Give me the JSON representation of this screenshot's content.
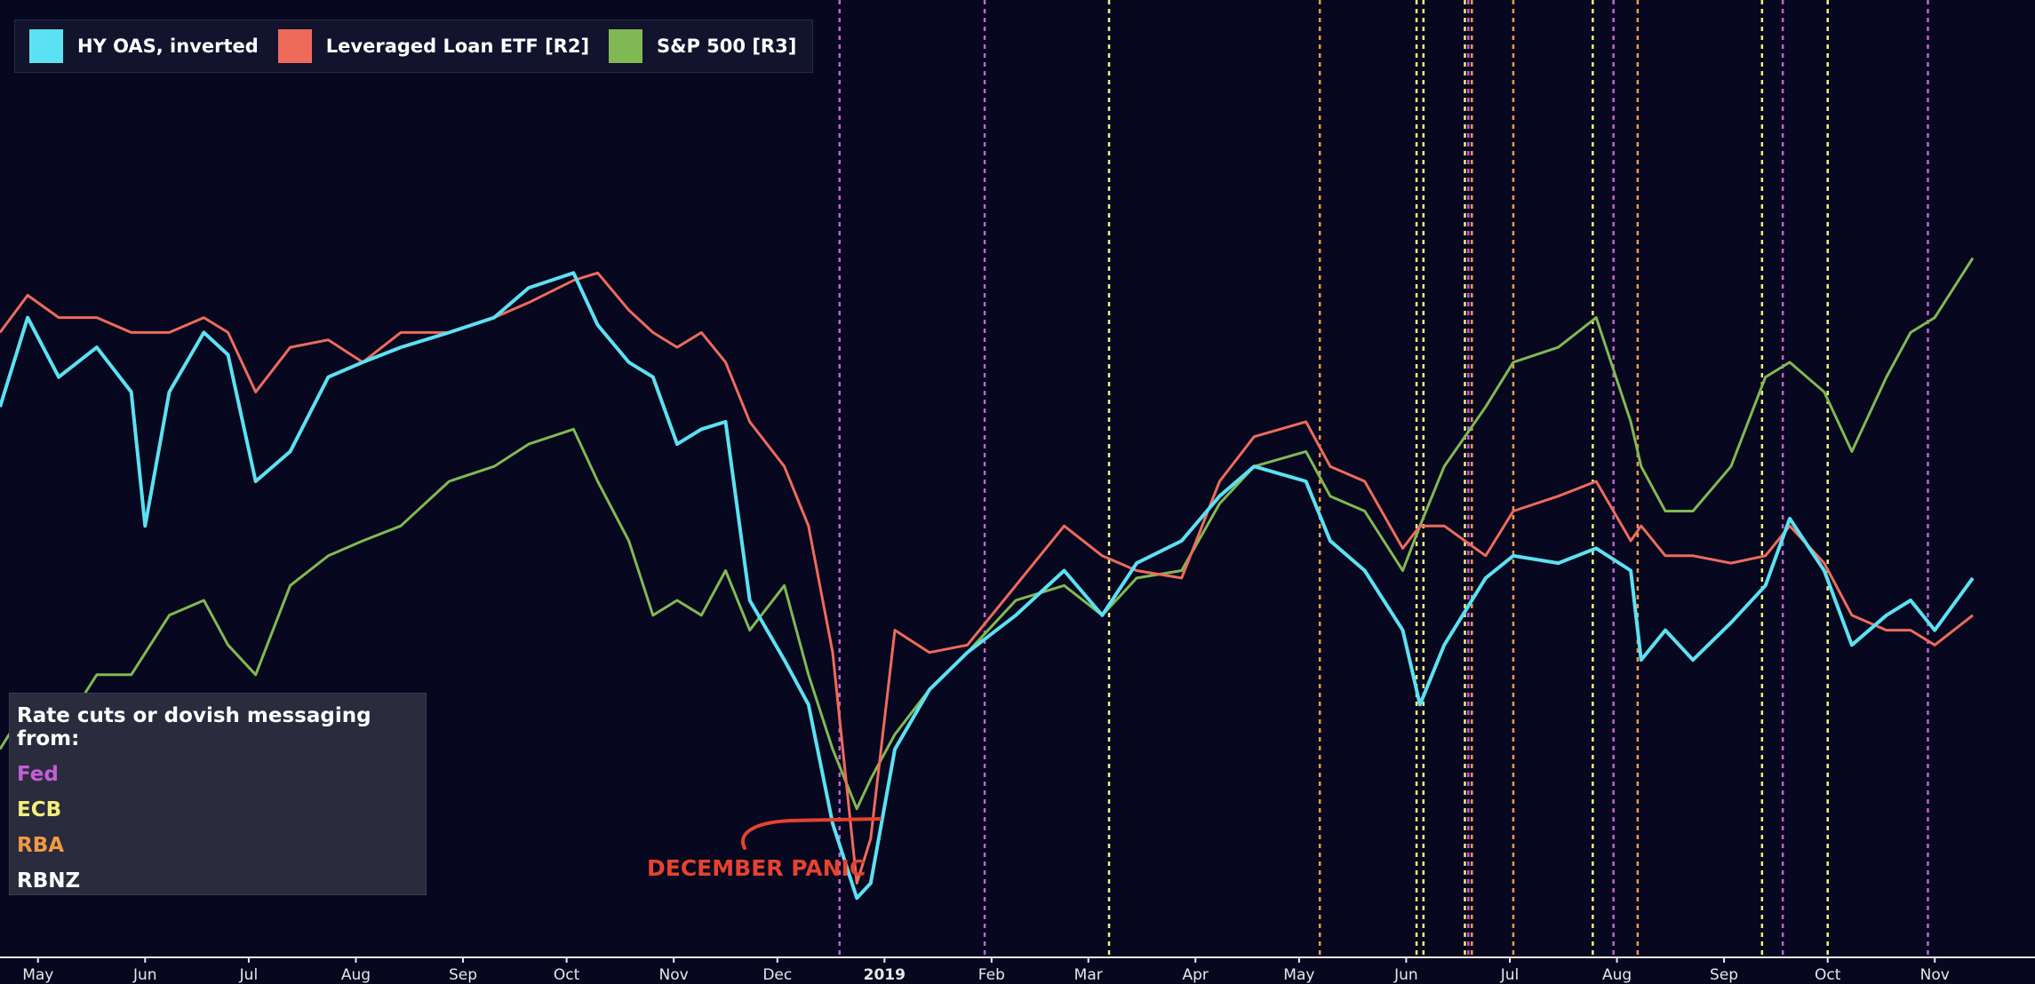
{
  "legend": {
    "items": [
      {
        "label": "HY OAS, inverted",
        "color": "#5ce1f2"
      },
      {
        "label": "Leveraged Loan ETF [R2]",
        "color": "#ee6b5c"
      },
      {
        "label": "S&P 500 [R3]",
        "color": "#80b953"
      }
    ]
  },
  "central_banks": {
    "title": "Rate cuts or dovish messaging from:",
    "items": [
      {
        "label": "Fed",
        "color": "#c55fd6"
      },
      {
        "label": "ECB",
        "color": "#f3f07a"
      },
      {
        "label": "RBA",
        "color": "#f09a45"
      },
      {
        "label": "RBNZ",
        "color": "#ffffff"
      }
    ]
  },
  "annotation": {
    "text": "DECEMBER PANIC",
    "color": "#e5432f"
  },
  "chart_data": {
    "type": "line",
    "x_ticks": [
      "May",
      "Jun",
      "Jul",
      "Aug",
      "Sep",
      "Oct",
      "Nov",
      "Dec",
      "2019",
      "Feb",
      "Mar",
      "Apr",
      "May",
      "Jun",
      "Jul",
      "Aug",
      "Sep",
      "Oct",
      "Nov"
    ],
    "x_axis": {
      "start": "2018-04-20",
      "end": "2019-11-30"
    },
    "series": [
      {
        "name": "HY OAS, inverted",
        "color": "#5ce1f2",
        "values": [
          [
            "2018-04-20",
            68
          ],
          [
            "2018-04-28",
            80
          ],
          [
            "2018-05-07",
            72
          ],
          [
            "2018-05-18",
            76
          ],
          [
            "2018-05-28",
            70
          ],
          [
            "2018-06-01",
            52
          ],
          [
            "2018-06-08",
            70
          ],
          [
            "2018-06-18",
            78
          ],
          [
            "2018-06-25",
            75
          ],
          [
            "2018-07-03",
            58
          ],
          [
            "2018-07-13",
            62
          ],
          [
            "2018-07-24",
            72
          ],
          [
            "2018-08-03",
            74
          ],
          [
            "2018-08-14",
            76
          ],
          [
            "2018-08-28",
            78
          ],
          [
            "2018-09-10",
            80
          ],
          [
            "2018-09-20",
            84
          ],
          [
            "2018-10-03",
            86
          ],
          [
            "2018-10-10",
            79
          ],
          [
            "2018-10-19",
            74
          ],
          [
            "2018-10-26",
            72
          ],
          [
            "2018-11-02",
            63
          ],
          [
            "2018-11-09",
            65
          ],
          [
            "2018-11-16",
            66
          ],
          [
            "2018-11-23",
            42
          ],
          [
            "2018-12-03",
            34
          ],
          [
            "2018-12-10",
            28
          ],
          [
            "2018-12-17",
            12
          ],
          [
            "2018-12-24",
            2
          ],
          [
            "2018-12-28",
            4
          ],
          [
            "2019-01-04",
            22
          ],
          [
            "2019-01-14",
            30
          ],
          [
            "2019-01-25",
            35
          ],
          [
            "2019-02-08",
            40
          ],
          [
            "2019-02-22",
            46
          ],
          [
            "2019-03-05",
            40
          ],
          [
            "2019-03-15",
            47
          ],
          [
            "2019-03-28",
            50
          ],
          [
            "2019-04-08",
            56
          ],
          [
            "2019-04-18",
            60
          ],
          [
            "2019-05-03",
            58
          ],
          [
            "2019-05-10",
            50
          ],
          [
            "2019-05-20",
            46
          ],
          [
            "2019-05-31",
            38
          ],
          [
            "2019-06-05",
            28
          ],
          [
            "2019-06-12",
            36
          ],
          [
            "2019-06-24",
            45
          ],
          [
            "2019-07-02",
            48
          ],
          [
            "2019-07-15",
            47
          ],
          [
            "2019-07-26",
            49
          ],
          [
            "2019-08-05",
            46
          ],
          [
            "2019-08-08",
            34
          ],
          [
            "2019-08-15",
            38
          ],
          [
            "2019-08-23",
            34
          ],
          [
            "2019-09-03",
            39
          ],
          [
            "2019-09-13",
            44
          ],
          [
            "2019-09-20",
            53
          ],
          [
            "2019-09-30",
            46
          ],
          [
            "2019-10-08",
            36
          ],
          [
            "2019-10-18",
            40
          ],
          [
            "2019-10-25",
            42
          ],
          [
            "2019-11-01",
            38
          ],
          [
            "2019-11-12",
            45
          ]
        ]
      },
      {
        "name": "Leveraged Loan ETF [R2]",
        "color": "#ee6b5c",
        "values": [
          [
            "2018-04-20",
            78
          ],
          [
            "2018-04-28",
            83
          ],
          [
            "2018-05-07",
            80
          ],
          [
            "2018-05-18",
            80
          ],
          [
            "2018-05-28",
            78
          ],
          [
            "2018-06-08",
            78
          ],
          [
            "2018-06-18",
            80
          ],
          [
            "2018-06-25",
            78
          ],
          [
            "2018-07-03",
            70
          ],
          [
            "2018-07-13",
            76
          ],
          [
            "2018-07-24",
            77
          ],
          [
            "2018-08-03",
            74
          ],
          [
            "2018-08-14",
            78
          ],
          [
            "2018-08-28",
            78
          ],
          [
            "2018-09-10",
            80
          ],
          [
            "2018-09-20",
            82
          ],
          [
            "2018-10-03",
            85
          ],
          [
            "2018-10-10",
            86
          ],
          [
            "2018-10-19",
            81
          ],
          [
            "2018-10-26",
            78
          ],
          [
            "2018-11-02",
            76
          ],
          [
            "2018-11-09",
            78
          ],
          [
            "2018-11-16",
            74
          ],
          [
            "2018-11-23",
            66
          ],
          [
            "2018-12-03",
            60
          ],
          [
            "2018-12-10",
            52
          ],
          [
            "2018-12-17",
            35
          ],
          [
            "2018-12-24",
            4
          ],
          [
            "2018-12-28",
            10
          ],
          [
            "2019-01-04",
            38
          ],
          [
            "2019-01-14",
            35
          ],
          [
            "2019-01-25",
            36
          ],
          [
            "2019-02-08",
            44
          ],
          [
            "2019-02-22",
            52
          ],
          [
            "2019-03-05",
            48
          ],
          [
            "2019-03-15",
            46
          ],
          [
            "2019-03-28",
            45
          ],
          [
            "2019-04-08",
            58
          ],
          [
            "2019-04-18",
            64
          ],
          [
            "2019-05-03",
            66
          ],
          [
            "2019-05-10",
            60
          ],
          [
            "2019-05-20",
            58
          ],
          [
            "2019-05-31",
            49
          ],
          [
            "2019-06-05",
            52
          ],
          [
            "2019-06-12",
            52
          ],
          [
            "2019-06-24",
            48
          ],
          [
            "2019-07-02",
            54
          ],
          [
            "2019-07-15",
            56
          ],
          [
            "2019-07-26",
            58
          ],
          [
            "2019-08-05",
            50
          ],
          [
            "2019-08-08",
            52
          ],
          [
            "2019-08-15",
            48
          ],
          [
            "2019-08-23",
            48
          ],
          [
            "2019-09-03",
            47
          ],
          [
            "2019-09-13",
            48
          ],
          [
            "2019-09-20",
            52
          ],
          [
            "2019-09-30",
            47
          ],
          [
            "2019-10-08",
            40
          ],
          [
            "2019-10-18",
            38
          ],
          [
            "2019-10-25",
            38
          ],
          [
            "2019-11-01",
            36
          ],
          [
            "2019-11-12",
            40
          ]
        ]
      },
      {
        "name": "S&P 500 [R3]",
        "color": "#80b953",
        "values": [
          [
            "2018-04-20",
            22
          ],
          [
            "2018-04-28",
            28
          ],
          [
            "2018-05-07",
            24
          ],
          [
            "2018-05-18",
            32
          ],
          [
            "2018-05-28",
            32
          ],
          [
            "2018-06-08",
            40
          ],
          [
            "2018-06-18",
            42
          ],
          [
            "2018-06-25",
            36
          ],
          [
            "2018-07-03",
            32
          ],
          [
            "2018-07-13",
            44
          ],
          [
            "2018-07-24",
            48
          ],
          [
            "2018-08-03",
            50
          ],
          [
            "2018-08-14",
            52
          ],
          [
            "2018-08-28",
            58
          ],
          [
            "2018-09-10",
            60
          ],
          [
            "2018-09-20",
            63
          ],
          [
            "2018-10-03",
            65
          ],
          [
            "2018-10-10",
            58
          ],
          [
            "2018-10-19",
            50
          ],
          [
            "2018-10-26",
            40
          ],
          [
            "2018-11-02",
            42
          ],
          [
            "2018-11-09",
            40
          ],
          [
            "2018-11-16",
            46
          ],
          [
            "2018-11-23",
            38
          ],
          [
            "2018-12-03",
            44
          ],
          [
            "2018-12-10",
            32
          ],
          [
            "2018-12-17",
            22
          ],
          [
            "2018-12-24",
            14
          ],
          [
            "2018-12-28",
            18
          ],
          [
            "2019-01-04",
            24
          ],
          [
            "2019-01-14",
            30
          ],
          [
            "2019-01-25",
            35
          ],
          [
            "2019-02-08",
            42
          ],
          [
            "2019-02-22",
            44
          ],
          [
            "2019-03-05",
            40
          ],
          [
            "2019-03-15",
            45
          ],
          [
            "2019-03-28",
            46
          ],
          [
            "2019-04-08",
            55
          ],
          [
            "2019-04-18",
            60
          ],
          [
            "2019-05-03",
            62
          ],
          [
            "2019-05-10",
            56
          ],
          [
            "2019-05-20",
            54
          ],
          [
            "2019-05-31",
            46
          ],
          [
            "2019-06-05",
            52
          ],
          [
            "2019-06-12",
            60
          ],
          [
            "2019-06-24",
            68
          ],
          [
            "2019-07-02",
            74
          ],
          [
            "2019-07-15",
            76
          ],
          [
            "2019-07-26",
            80
          ],
          [
            "2019-08-05",
            66
          ],
          [
            "2019-08-08",
            60
          ],
          [
            "2019-08-15",
            54
          ],
          [
            "2019-08-23",
            54
          ],
          [
            "2019-09-03",
            60
          ],
          [
            "2019-09-13",
            72
          ],
          [
            "2019-09-20",
            74
          ],
          [
            "2019-09-30",
            70
          ],
          [
            "2019-10-08",
            62
          ],
          [
            "2019-10-18",
            72
          ],
          [
            "2019-10-25",
            78
          ],
          [
            "2019-11-01",
            80
          ],
          [
            "2019-11-12",
            88
          ]
        ]
      }
    ],
    "event_lines": [
      {
        "date": "2018-12-19",
        "bank": "Fed"
      },
      {
        "date": "2019-01-30",
        "bank": "Fed"
      },
      {
        "date": "2019-03-07",
        "bank": "ECB"
      },
      {
        "date": "2019-05-07",
        "bank": "RBA"
      },
      {
        "date": "2019-06-04",
        "bank": "ECB"
      },
      {
        "date": "2019-06-06",
        "bank": "ECB"
      },
      {
        "date": "2019-06-18",
        "bank": "ECB"
      },
      {
        "date": "2019-06-19",
        "bank": "Fed"
      },
      {
        "date": "2019-06-20",
        "bank": "RBA"
      },
      {
        "date": "2019-07-02",
        "bank": "RBA"
      },
      {
        "date": "2019-07-25",
        "bank": "ECB"
      },
      {
        "date": "2019-07-31",
        "bank": "Fed"
      },
      {
        "date": "2019-08-07",
        "bank": "RBA"
      },
      {
        "date": "2019-09-12",
        "bank": "ECB"
      },
      {
        "date": "2019-09-18",
        "bank": "Fed"
      },
      {
        "date": "2019-10-01",
        "bank": "ECB"
      },
      {
        "date": "2019-10-30",
        "bank": "Fed"
      }
    ]
  }
}
